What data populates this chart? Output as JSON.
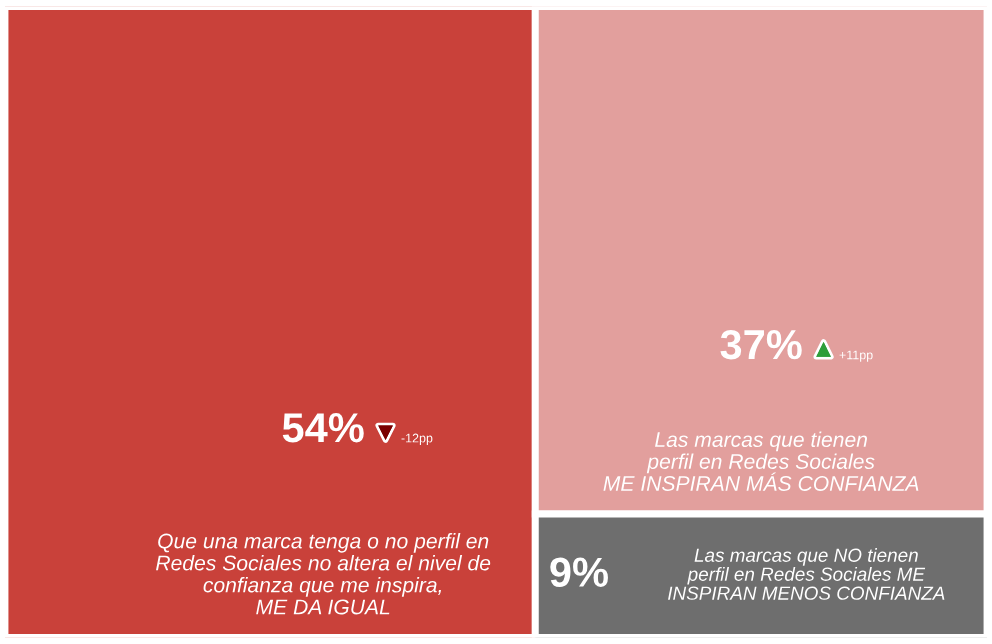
{
  "chart_data": {
    "type": "other",
    "categories": [
      "Que una marca tenga o no perfil en\nRedes Sociales no altera el nivel de\nconfianza que me inspira,\nME DA IGUAL",
      "Las marcas que tienen\nperfil en Redes Sociales\nME INSPIRAN MÁS CONFIANZA",
      "Las marcas que NO tienen\nperfil en Redes Sociales ME\nINSPIRAN MENOS CONFIANZA"
    ],
    "values": [
      54,
      37,
      9
    ],
    "value_labels": [
      "54%",
      "37%",
      "9%"
    ],
    "colors": [
      "#c9413a",
      "#e29f9d",
      "#6e6e6e"
    ],
    "annotations": [
      "▼-12pp",
      "▲+11pp"
    ]
  }
}
